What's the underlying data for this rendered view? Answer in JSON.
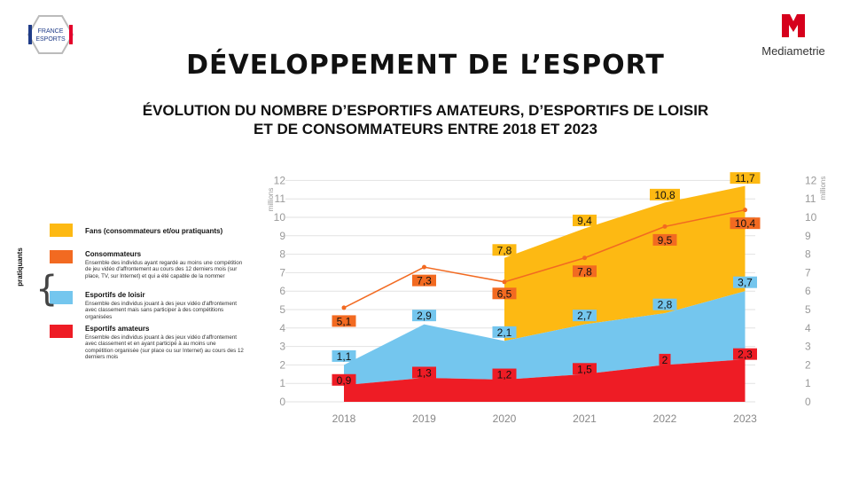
{
  "header": {
    "title": "DÉVELOPPEMENT DE L’ESPORT",
    "subtitle_line1": "ÉVOLUTION DU NOMBRE D’ESPORTIFS AMATEURS, D’ESPORTIFS DE LOISIR",
    "subtitle_line2": "ET DE CONSOMMATEURS ENTRE 2018 ET 2023",
    "logo_left_text_1": "FRANCE",
    "logo_left_text_2": "ESPORTS",
    "logo_right_text": "Mediametrie"
  },
  "legend": {
    "side_label": "pratiquants",
    "items": [
      {
        "name": "Fans (consommateurs et/ou pratiquants)",
        "desc": "",
        "color": "#FDB913"
      },
      {
        "name": "Consommateurs",
        "desc": "Ensemble des individus ayant regardé au moins une compétition de jeu vidéo d'affrontement au cours des 12 derniers mois (sur place, TV, sur Internet) et qui a été capable de la nommer",
        "color": "#F26A21"
      },
      {
        "name": "Esportifs de loisir",
        "desc": "Ensemble des individus jouant à des jeux vidéo d'affrontement avec classement mais sans participer à des compétitions organisées",
        "color": "#74C6EE"
      },
      {
        "name": "Esportifs amateurs",
        "desc": "Ensemble des individus jouant à des jeux vidéo d'affrontement avec classement et en ayant participé à au moins une compétition organisée (sur place ou sur Internet) au cours des 12 derniers mois",
        "color": "#EE1C25"
      }
    ]
  },
  "chart_data": {
    "type": "area",
    "x": [
      "2018",
      "2019",
      "2020",
      "2021",
      "2022",
      "2023"
    ],
    "ylabel_left": "millions",
    "ylabel_right": "millions",
    "ylim": [
      0,
      12
    ],
    "yticks": [
      0,
      1,
      2,
      3,
      4,
      5,
      6,
      7,
      8,
      9,
      10,
      11,
      12
    ],
    "grid": true,
    "series": [
      {
        "name": "Fans (consommateurs et/ou pratiquants)",
        "kind": "area",
        "color": "#FDB913",
        "values": [
          null,
          null,
          7.8,
          9.4,
          10.8,
          11.7
        ],
        "labels": [
          "",
          "",
          "7,8",
          "9,4",
          "10,8",
          "11,7"
        ]
      },
      {
        "name": "Consommateurs",
        "kind": "line",
        "color": "#F26A21",
        "values": [
          5.1,
          7.3,
          6.5,
          7.8,
          9.5,
          10.4
        ],
        "labels": [
          "5,1",
          "7,3",
          "6,5",
          "7,8",
          "9,5",
          "10,4"
        ]
      },
      {
        "name": "Esportifs de loisir",
        "kind": "area",
        "color": "#74C6EE",
        "values": [
          1.1,
          2.9,
          2.1,
          2.7,
          2.8,
          3.7
        ],
        "labels": [
          "1,1",
          "2,9",
          "2,1",
          "2,7",
          "2,8",
          "3,7"
        ]
      },
      {
        "name": "Esportifs amateurs",
        "kind": "area",
        "color": "#EE1C25",
        "values": [
          0.9,
          1.3,
          1.2,
          1.5,
          2,
          2.3
        ],
        "labels": [
          "0,9",
          "1,3",
          "1,2",
          "1,5",
          "2",
          "2,3"
        ]
      }
    ],
    "stacked": [
      "Esportifs amateurs",
      "Esportifs de loisir"
    ]
  }
}
